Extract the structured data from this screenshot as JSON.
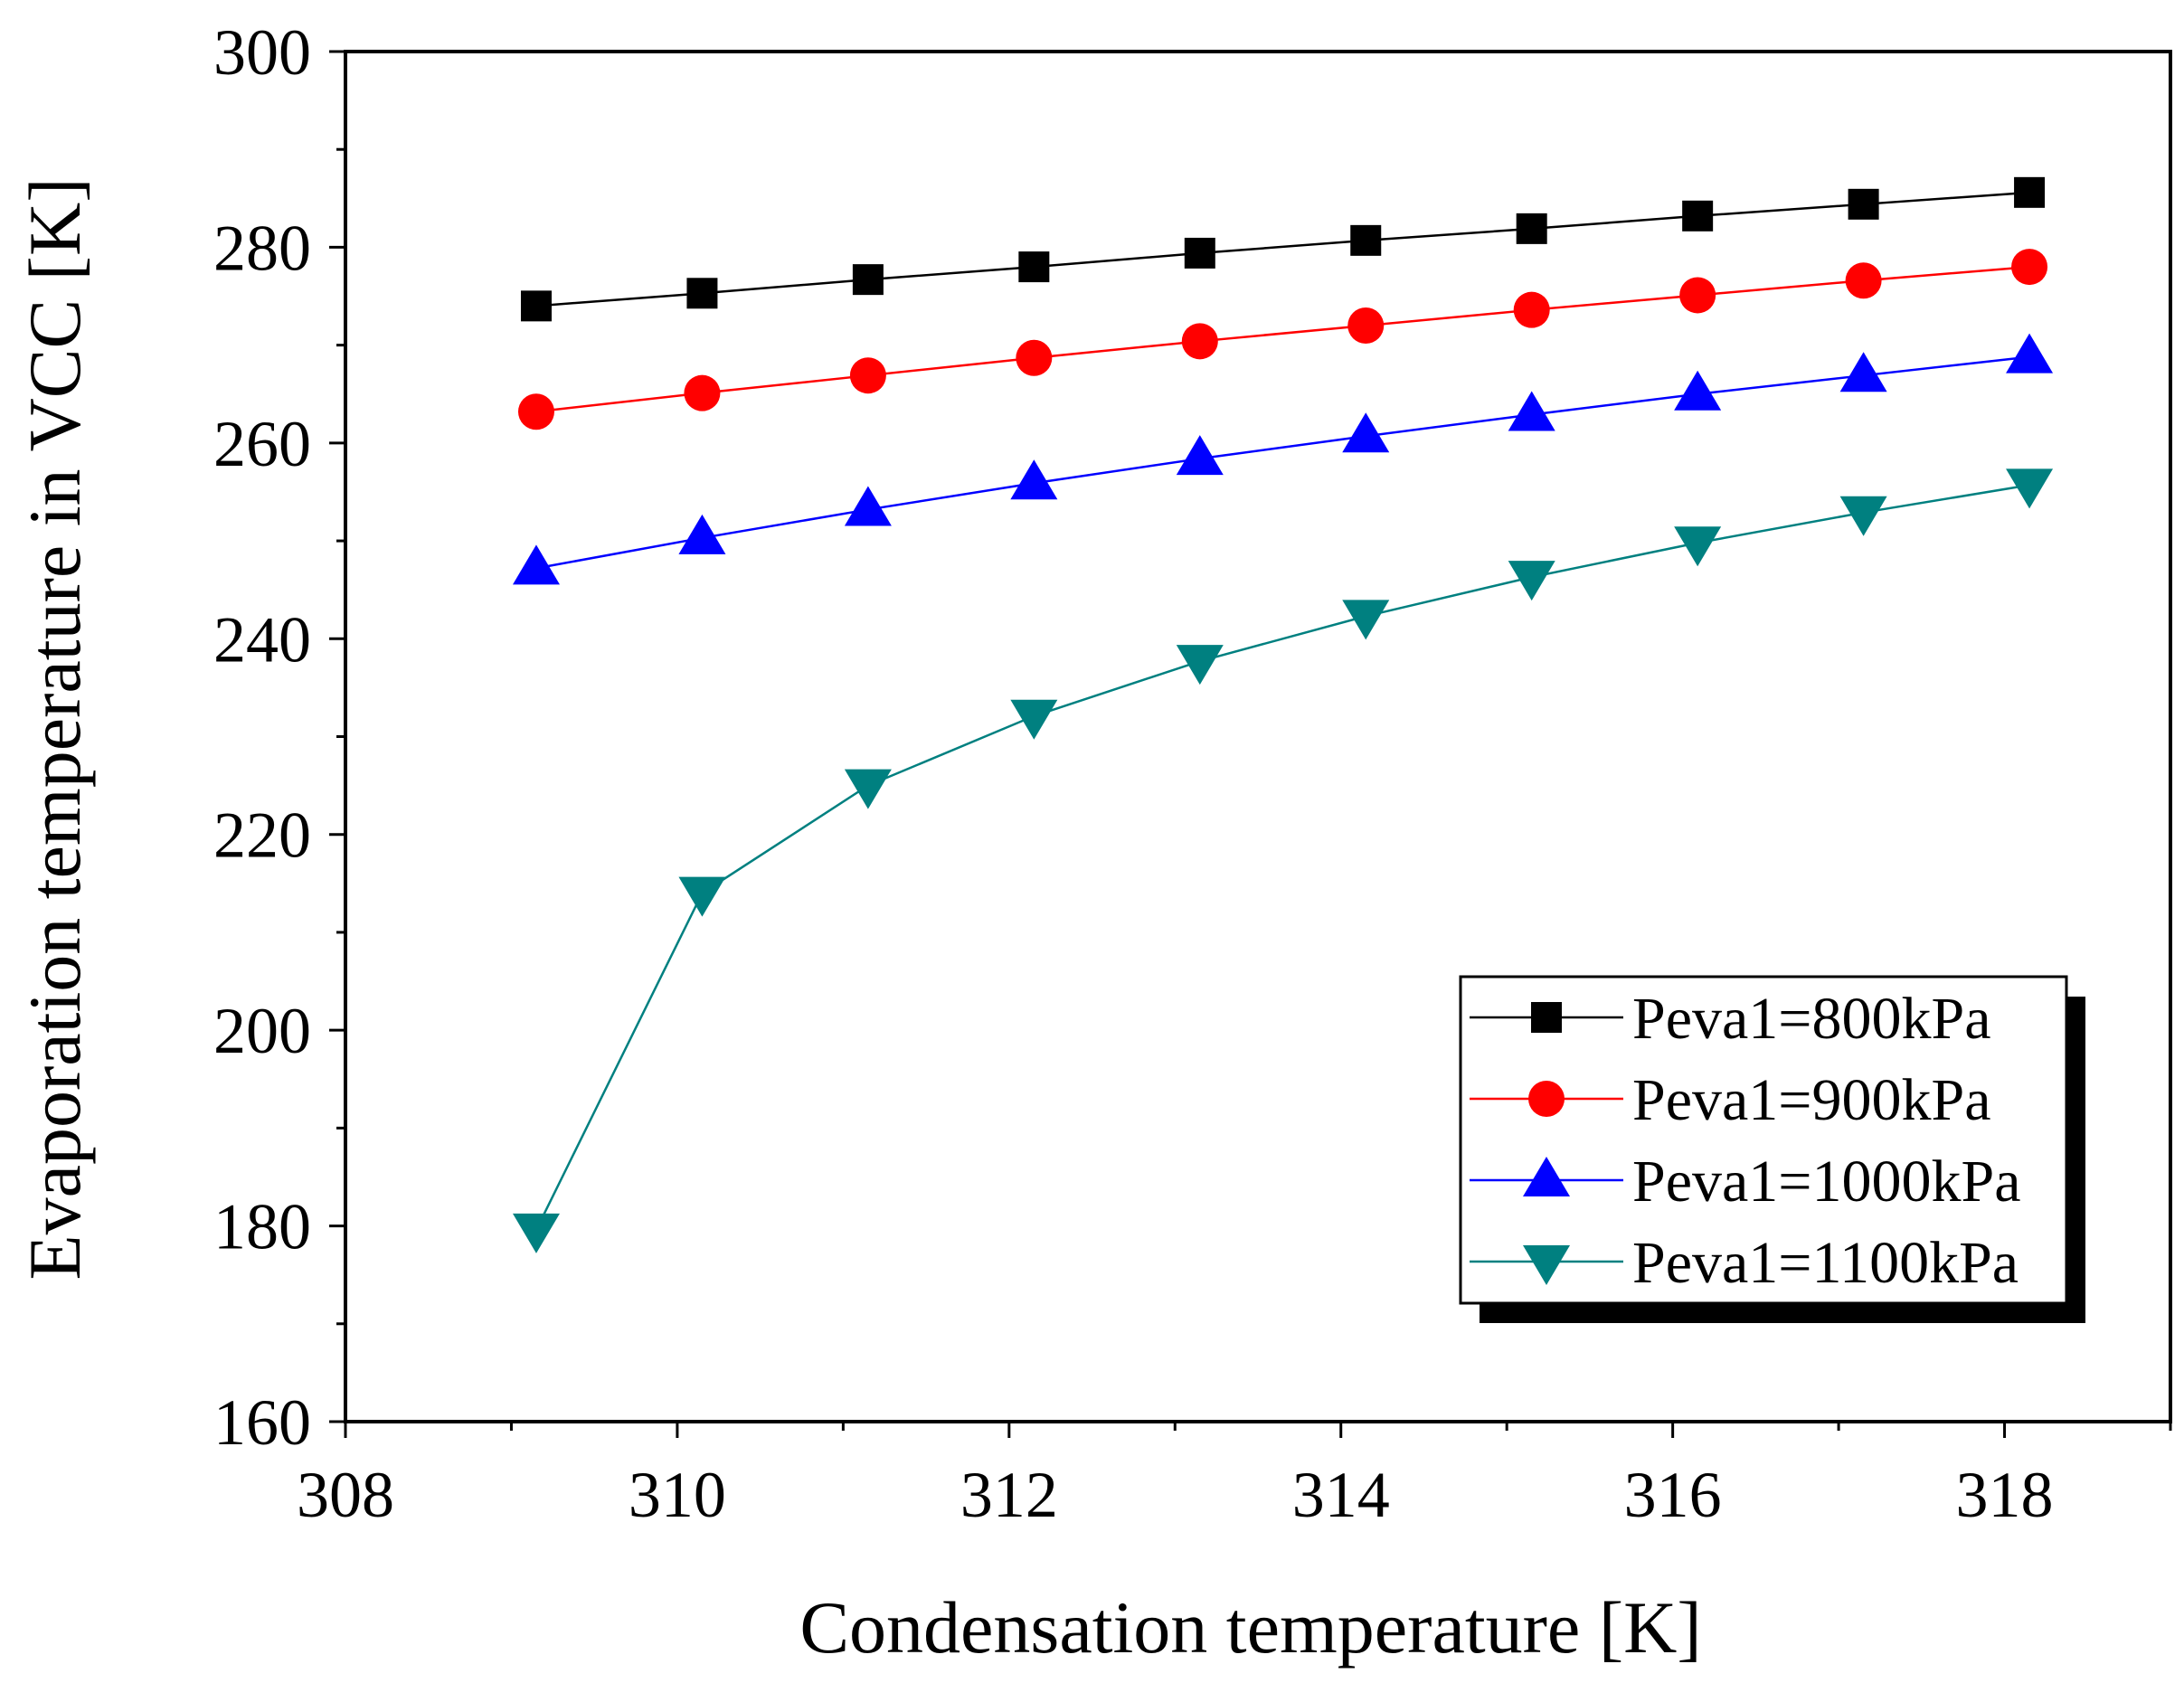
{
  "chart_data": {
    "type": "line",
    "xlabel": "Condensation temperature [K]",
    "ylabel": "Evaporation temperature in VCC [K]",
    "xlim": [
      308,
      319
    ],
    "ylim": [
      160,
      300
    ],
    "xticks": [
      308,
      310,
      312,
      314,
      316,
      318
    ],
    "yticks": [
      160,
      180,
      200,
      220,
      240,
      260,
      280,
      300
    ],
    "x": [
      309.15,
      310.15,
      311.15,
      312.15,
      313.15,
      314.15,
      315.15,
      316.15,
      317.15,
      318.15
    ],
    "legend_position": "bottom-right",
    "series": [
      {
        "name": "Peva1=800kPa",
        "color": "#000000",
        "marker": "square",
        "values": [
          274.0,
          275.3,
          276.7,
          278.0,
          279.4,
          280.7,
          281.9,
          283.2,
          284.4,
          285.6
        ]
      },
      {
        "name": "Peva1=900kPa",
        "color": "#ff0000",
        "marker": "circle",
        "values": [
          263.2,
          265.1,
          266.9,
          268.7,
          270.4,
          272.0,
          273.6,
          275.1,
          276.6,
          278.0
        ]
      },
      {
        "name": "Peva1=1000kPa",
        "color": "#0000ff",
        "marker": "triangle-up",
        "values": [
          247.2,
          250.3,
          253.2,
          255.9,
          258.4,
          260.7,
          262.9,
          265.0,
          266.9,
          268.8
        ]
      },
      {
        "name": "Peva1=1100kPa",
        "color": "#008080",
        "marker": "triangle-down",
        "values": [
          179.6,
          214.0,
          225.0,
          232.1,
          237.7,
          242.3,
          246.3,
          249.8,
          252.9,
          255.7
        ]
      }
    ]
  }
}
